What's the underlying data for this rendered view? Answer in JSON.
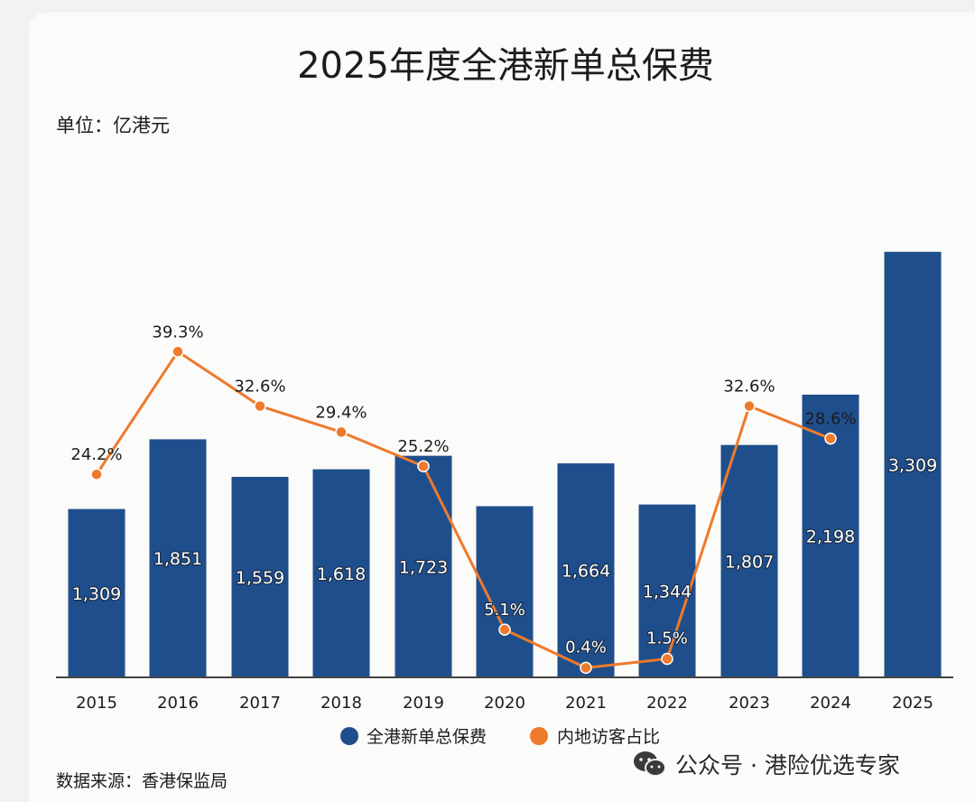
{
  "chart_data": {
    "type": "bar",
    "title": "2025年度全港新单总保费",
    "unit_label": "单位：亿港元",
    "source": "数据来源：香港保监局",
    "categories": [
      "2015",
      "2016",
      "2017",
      "2018",
      "2019",
      "2020",
      "2021",
      "2022",
      "2023",
      "2024",
      "2025"
    ],
    "series": [
      {
        "name": "全港新单总保费",
        "type": "bar",
        "color": "#1f4e8c",
        "values": [
          1309,
          1851,
          1559,
          1618,
          1723,
          1331,
          1664,
          1344,
          1807,
          2198,
          3309
        ],
        "labels": [
          "1,309",
          "1,851",
          "1,559",
          "1,618",
          "1,723",
          "",
          "1,664",
          "1,344",
          "1,807",
          "2,198",
          "3,309"
        ]
      },
      {
        "name": "内地访客占比",
        "type": "line",
        "color": "#ee7a2b",
        "values": [
          24.2,
          39.3,
          32.6,
          29.4,
          25.2,
          5.1,
          0.4,
          1.5,
          32.6,
          28.6,
          null
        ],
        "labels": [
          "24.2%",
          "39.3%",
          "32.6%",
          "29.4%",
          "25.2%",
          "5.1%",
          "0.4%",
          "1.5%",
          "32.6%",
          "28.6%",
          ""
        ]
      }
    ],
    "legend": "bottom-center",
    "grid": false
  },
  "watermark": {
    "icon": "wechat-icon",
    "text": "公众号 · 港险优选专家"
  }
}
